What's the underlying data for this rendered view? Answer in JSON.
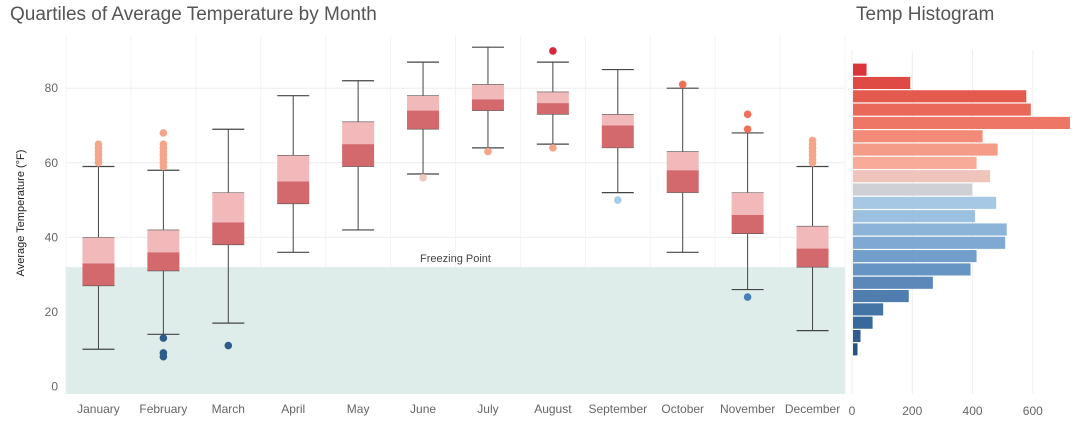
{
  "titles": {
    "main": "Quartiles of Average Temperature by Month",
    "histogram": "Temp Histogram"
  },
  "annotation": "Freezing Point",
  "colors": {
    "freezing_band": "#deede9",
    "box_upper": "#f2b9bb",
    "box_lower": "#d3696d",
    "whisker": "#444444",
    "grid": "#eeeeee"
  },
  "chart_data": [
    {
      "type": "box",
      "title": "Quartiles of Average Temperature by Month",
      "xlabel": "",
      "ylabel": "Average Temperature (°F)",
      "ylim": [
        -2,
        94
      ],
      "yticks": [
        0,
        20,
        40,
        60,
        80
      ],
      "grid": true,
      "reference_band": {
        "label": "Freezing Point",
        "from": -2,
        "to": 32
      },
      "categories": [
        "January",
        "February",
        "March",
        "April",
        "May",
        "June",
        "July",
        "August",
        "September",
        "October",
        "November",
        "December"
      ],
      "boxes": [
        {
          "month": "January",
          "min": 10,
          "q1": 27,
          "median": 33,
          "q3": 40,
          "max": 59,
          "outliers": [
            {
              "y": 60,
              "color": "#f4a58a"
            },
            {
              "y": 61,
              "color": "#f4a58a"
            },
            {
              "y": 62,
              "color": "#f4a58a"
            },
            {
              "y": 63,
              "color": "#f4a58a"
            },
            {
              "y": 64,
              "color": "#f4a58a"
            },
            {
              "y": 65,
              "color": "#f4a58a"
            }
          ]
        },
        {
          "month": "February",
          "min": 14,
          "q1": 31,
          "median": 36,
          "q3": 42,
          "max": 58,
          "outliers": [
            {
              "y": 59,
              "color": "#f4a58a"
            },
            {
              "y": 60,
              "color": "#f4a58a"
            },
            {
              "y": 61,
              "color": "#f4a58a"
            },
            {
              "y": 62,
              "color": "#f4a58a"
            },
            {
              "y": 63,
              "color": "#f4a58a"
            },
            {
              "y": 64,
              "color": "#f4a58a"
            },
            {
              "y": 65,
              "color": "#f4a58a"
            },
            {
              "y": 68,
              "color": "#f4a58a"
            },
            {
              "y": 13,
              "color": "#2f5b8a"
            },
            {
              "y": 9,
              "color": "#2f5b8a"
            },
            {
              "y": 8,
              "color": "#2f5b8a"
            }
          ]
        },
        {
          "month": "March",
          "min": 17,
          "q1": 38,
          "median": 44,
          "q3": 52,
          "max": 69,
          "outliers": [
            {
              "y": 11,
              "color": "#2f5b8a"
            }
          ]
        },
        {
          "month": "April",
          "min": 36,
          "q1": 49,
          "median": 55,
          "q3": 62,
          "max": 78,
          "outliers": []
        },
        {
          "month": "May",
          "min": 42,
          "q1": 59,
          "median": 65,
          "q3": 71,
          "max": 82,
          "outliers": []
        },
        {
          "month": "June",
          "min": 57,
          "q1": 69,
          "median": 74,
          "q3": 78,
          "max": 87,
          "outliers": [
            {
              "y": 56,
              "color": "#eec8c0"
            }
          ]
        },
        {
          "month": "July",
          "min": 64,
          "q1": 74,
          "median": 77,
          "q3": 81,
          "max": 91,
          "outliers": [
            {
              "y": 63,
              "color": "#f4a58a"
            }
          ]
        },
        {
          "month": "August",
          "min": 65,
          "q1": 73,
          "median": 76,
          "q3": 79,
          "max": 87,
          "outliers": [
            {
              "y": 90,
              "color": "#d7263d"
            },
            {
              "y": 64,
              "color": "#f4a58a"
            }
          ]
        },
        {
          "month": "September",
          "min": 52,
          "q1": 64,
          "median": 70,
          "q3": 73,
          "max": 85,
          "outliers": [
            {
              "y": 50,
              "color": "#a9cbe6"
            }
          ]
        },
        {
          "month": "October",
          "min": 36,
          "q1": 52,
          "median": 58,
          "q3": 63,
          "max": 80,
          "outliers": [
            {
              "y": 81,
              "color": "#ef6f5a"
            }
          ]
        },
        {
          "month": "November",
          "min": 26,
          "q1": 41,
          "median": 46,
          "q3": 52,
          "max": 68,
          "outliers": [
            {
              "y": 73,
              "color": "#ef6f5a"
            },
            {
              "y": 69,
              "color": "#ef6f5a"
            },
            {
              "y": 24,
              "color": "#4a7fb5"
            }
          ]
        },
        {
          "month": "December",
          "min": 15,
          "q1": 32,
          "median": 37,
          "q3": 43,
          "max": 59,
          "outliers": [
            {
              "y": 60,
              "color": "#f4a58a"
            },
            {
              "y": 61,
              "color": "#f4a58a"
            },
            {
              "y": 62,
              "color": "#f4a58a"
            },
            {
              "y": 63,
              "color": "#f4a58a"
            },
            {
              "y": 64,
              "color": "#f4a58a"
            },
            {
              "y": 65,
              "color": "#f4a58a"
            },
            {
              "y": 66,
              "color": "#f4a58a"
            }
          ]
        }
      ]
    },
    {
      "type": "bar",
      "orientation": "horizontal",
      "title": "Temp Histogram",
      "xlim": [
        0,
        730
      ],
      "xticks": [
        0,
        200,
        400,
        600
      ],
      "bin_width": 4,
      "bins": [
        {
          "from": 88,
          "to": 92,
          "count": 45,
          "color": "#d9353b"
        },
        {
          "from": 84,
          "to": 88,
          "count": 190,
          "color": "#e04a45"
        },
        {
          "from": 80,
          "to": 84,
          "count": 575,
          "color": "#e55a4f"
        },
        {
          "from": 76,
          "to": 80,
          "count": 590,
          "color": "#e9685a"
        },
        {
          "from": 72,
          "to": 76,
          "count": 720,
          "color": "#ee7666"
        },
        {
          "from": 68,
          "to": 72,
          "count": 430,
          "color": "#f38b78"
        },
        {
          "from": 64,
          "to": 68,
          "count": 480,
          "color": "#f59c88"
        },
        {
          "from": 60,
          "to": 64,
          "count": 410,
          "color": "#f7ab98"
        },
        {
          "from": 56,
          "to": 60,
          "count": 455,
          "color": "#efc4ba"
        },
        {
          "from": 52,
          "to": 56,
          "count": 395,
          "color": "#cfcfd6"
        },
        {
          "from": 48,
          "to": 52,
          "count": 475,
          "color": "#a7c8e4"
        },
        {
          "from": 44,
          "to": 48,
          "count": 405,
          "color": "#9cc0e0"
        },
        {
          "from": 40,
          "to": 44,
          "count": 510,
          "color": "#8cb4d9"
        },
        {
          "from": 36,
          "to": 40,
          "count": 505,
          "color": "#7fa9d2"
        },
        {
          "from": 32,
          "to": 36,
          "count": 410,
          "color": "#719ecb"
        },
        {
          "from": 28,
          "to": 32,
          "count": 390,
          "color": "#6694c3"
        },
        {
          "from": 24,
          "to": 28,
          "count": 265,
          "color": "#5b88b9"
        },
        {
          "from": 20,
          "to": 24,
          "count": 185,
          "color": "#4f7db0"
        },
        {
          "from": 16,
          "to": 20,
          "count": 100,
          "color": "#4473a6"
        },
        {
          "from": 12,
          "to": 16,
          "count": 65,
          "color": "#39689b"
        },
        {
          "from": 8,
          "to": 12,
          "count": 25,
          "color": "#2f5d8f"
        },
        {
          "from": 4,
          "to": 8,
          "count": 15,
          "color": "#275383"
        }
      ]
    }
  ]
}
